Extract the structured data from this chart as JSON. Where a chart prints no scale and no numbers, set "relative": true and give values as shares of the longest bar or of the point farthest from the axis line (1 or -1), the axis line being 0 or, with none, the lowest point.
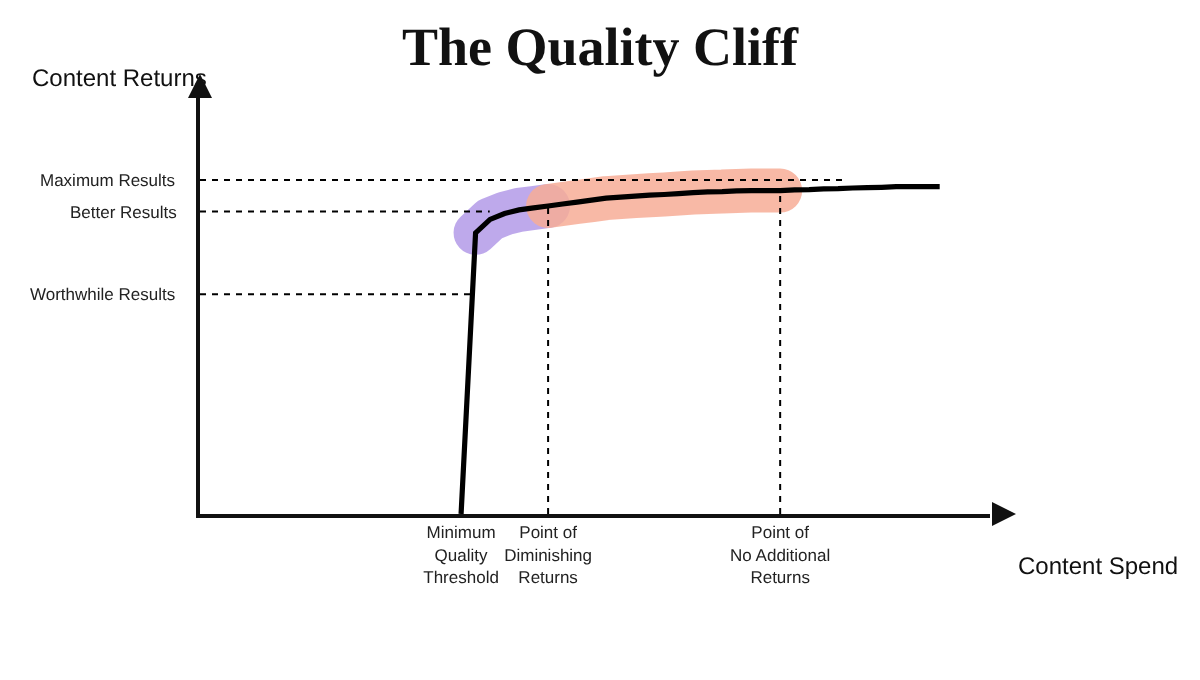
{
  "chart_data": {
    "type": "line",
    "title": "The Quality Cliff",
    "xlabel": "Content Spend",
    "ylabel": "Content Returns",
    "relative": true,
    "categories": [
      null,
      null,
      null,
      null,
      null,
      null,
      null,
      null,
      null,
      null,
      null,
      null,
      null,
      null,
      null,
      null,
      null,
      null,
      "Minimum\nQuality\nThreshold",
      null,
      null,
      null,
      null,
      null,
      "Point of\nDiminishing\nReturns",
      null,
      null,
      null,
      null,
      null,
      null,
      null,
      null,
      null,
      null,
      null,
      null,
      null,
      null,
      null,
      "Point of\nNo Additional\nReturns",
      null,
      null,
      null,
      null,
      null,
      null,
      null,
      null,
      null,
      null,
      null
    ],
    "grid": false,
    "marker": "none",
    "line_style": "solid",
    "series": [
      {
        "color": "#000000",
        "values": [
          null,
          null,
          null,
          null,
          null,
          null,
          null,
          null,
          null,
          null,
          null,
          null,
          null,
          null,
          null,
          null,
          null,
          null,
          0,
          0.859,
          0.9,
          0.918,
          0.929,
          0.935,
          0.941,
          0.947,
          0.953,
          0.959,
          0.965,
          0.968,
          0.971,
          0.974,
          0.976,
          0.979,
          0.982,
          0.984,
          0.985,
          0.987,
          0.988,
          0.988,
          0.988,
          0.99,
          0.991,
          0.993,
          0.994,
          0.996,
          0.997,
          0.998,
          1,
          1,
          1,
          1
        ]
      }
    ],
    "ref_lines": [
      {
        "axis": "y",
        "value": 0.671,
        "label": "Worthwhile Results",
        "line_style": "dotted",
        "color": "#000000"
      },
      {
        "axis": "y",
        "value": 0.924,
        "label": "Better Results",
        "line_style": "dotted",
        "color": "#000000"
      },
      {
        "axis": "y",
        "value": 1.02,
        "label": "Maximum Results",
        "line_style": "dotted",
        "color": "#000000"
      },
      {
        "axis": "x",
        "value": "Point of\nDiminishing\nReturns",
        "line_style": "dotted",
        "color": "#000000"
      },
      {
        "axis": "x",
        "value": "Point of\nNo Additional\nReturns",
        "line_style": "dotted",
        "color": "#000000"
      }
    ]
  }
}
